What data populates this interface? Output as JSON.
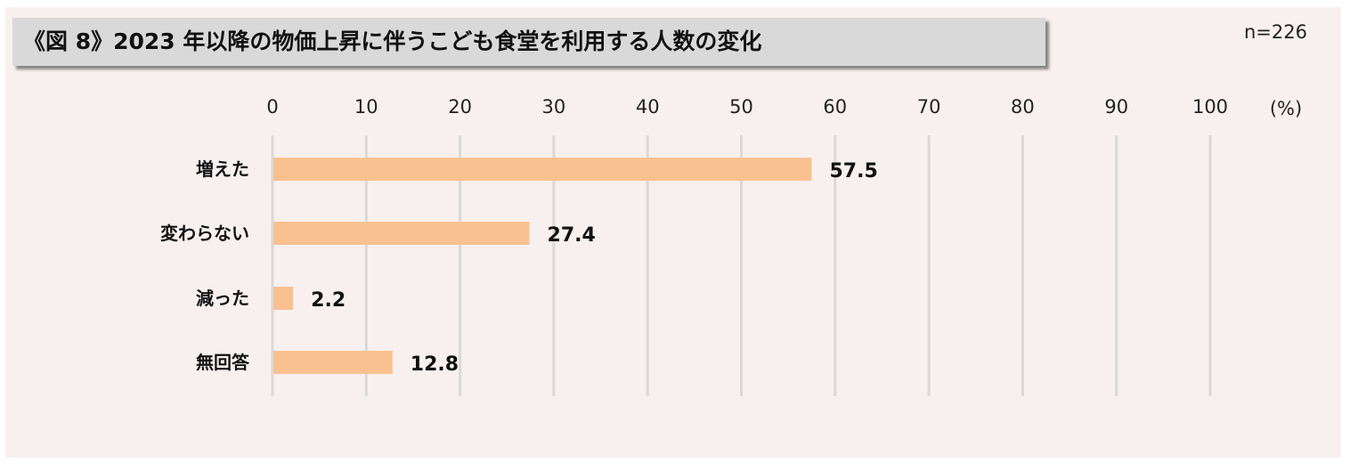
{
  "title": "《図 8》2023 年以降の物価上昇に伴うこども食堂を利用する人数の変化",
  "sample_size": "n=226",
  "chart_data": {
    "type": "bar",
    "orientation": "horizontal",
    "categories": [
      "増えた",
      "変わらない",
      "減った",
      "無回答"
    ],
    "values": [
      57.5,
      27.4,
      2.2,
      12.8
    ],
    "value_labels": [
      "57.5",
      "27.4",
      "2.2",
      "12.8"
    ],
    "xlim": [
      0,
      100
    ],
    "x_ticks": [
      0,
      10,
      20,
      30,
      40,
      50,
      60,
      70,
      80,
      90,
      100
    ],
    "x_tick_labels": [
      "0",
      "10",
      "20",
      "30",
      "40",
      "50",
      "60",
      "70",
      "80",
      "90",
      "100"
    ],
    "x_unit": "(%)",
    "x_axis_position": "top",
    "grid": true,
    "bar_color": "#f9c190",
    "grid_color": "#d9d9d9",
    "background_color": "#f8f0ef"
  }
}
